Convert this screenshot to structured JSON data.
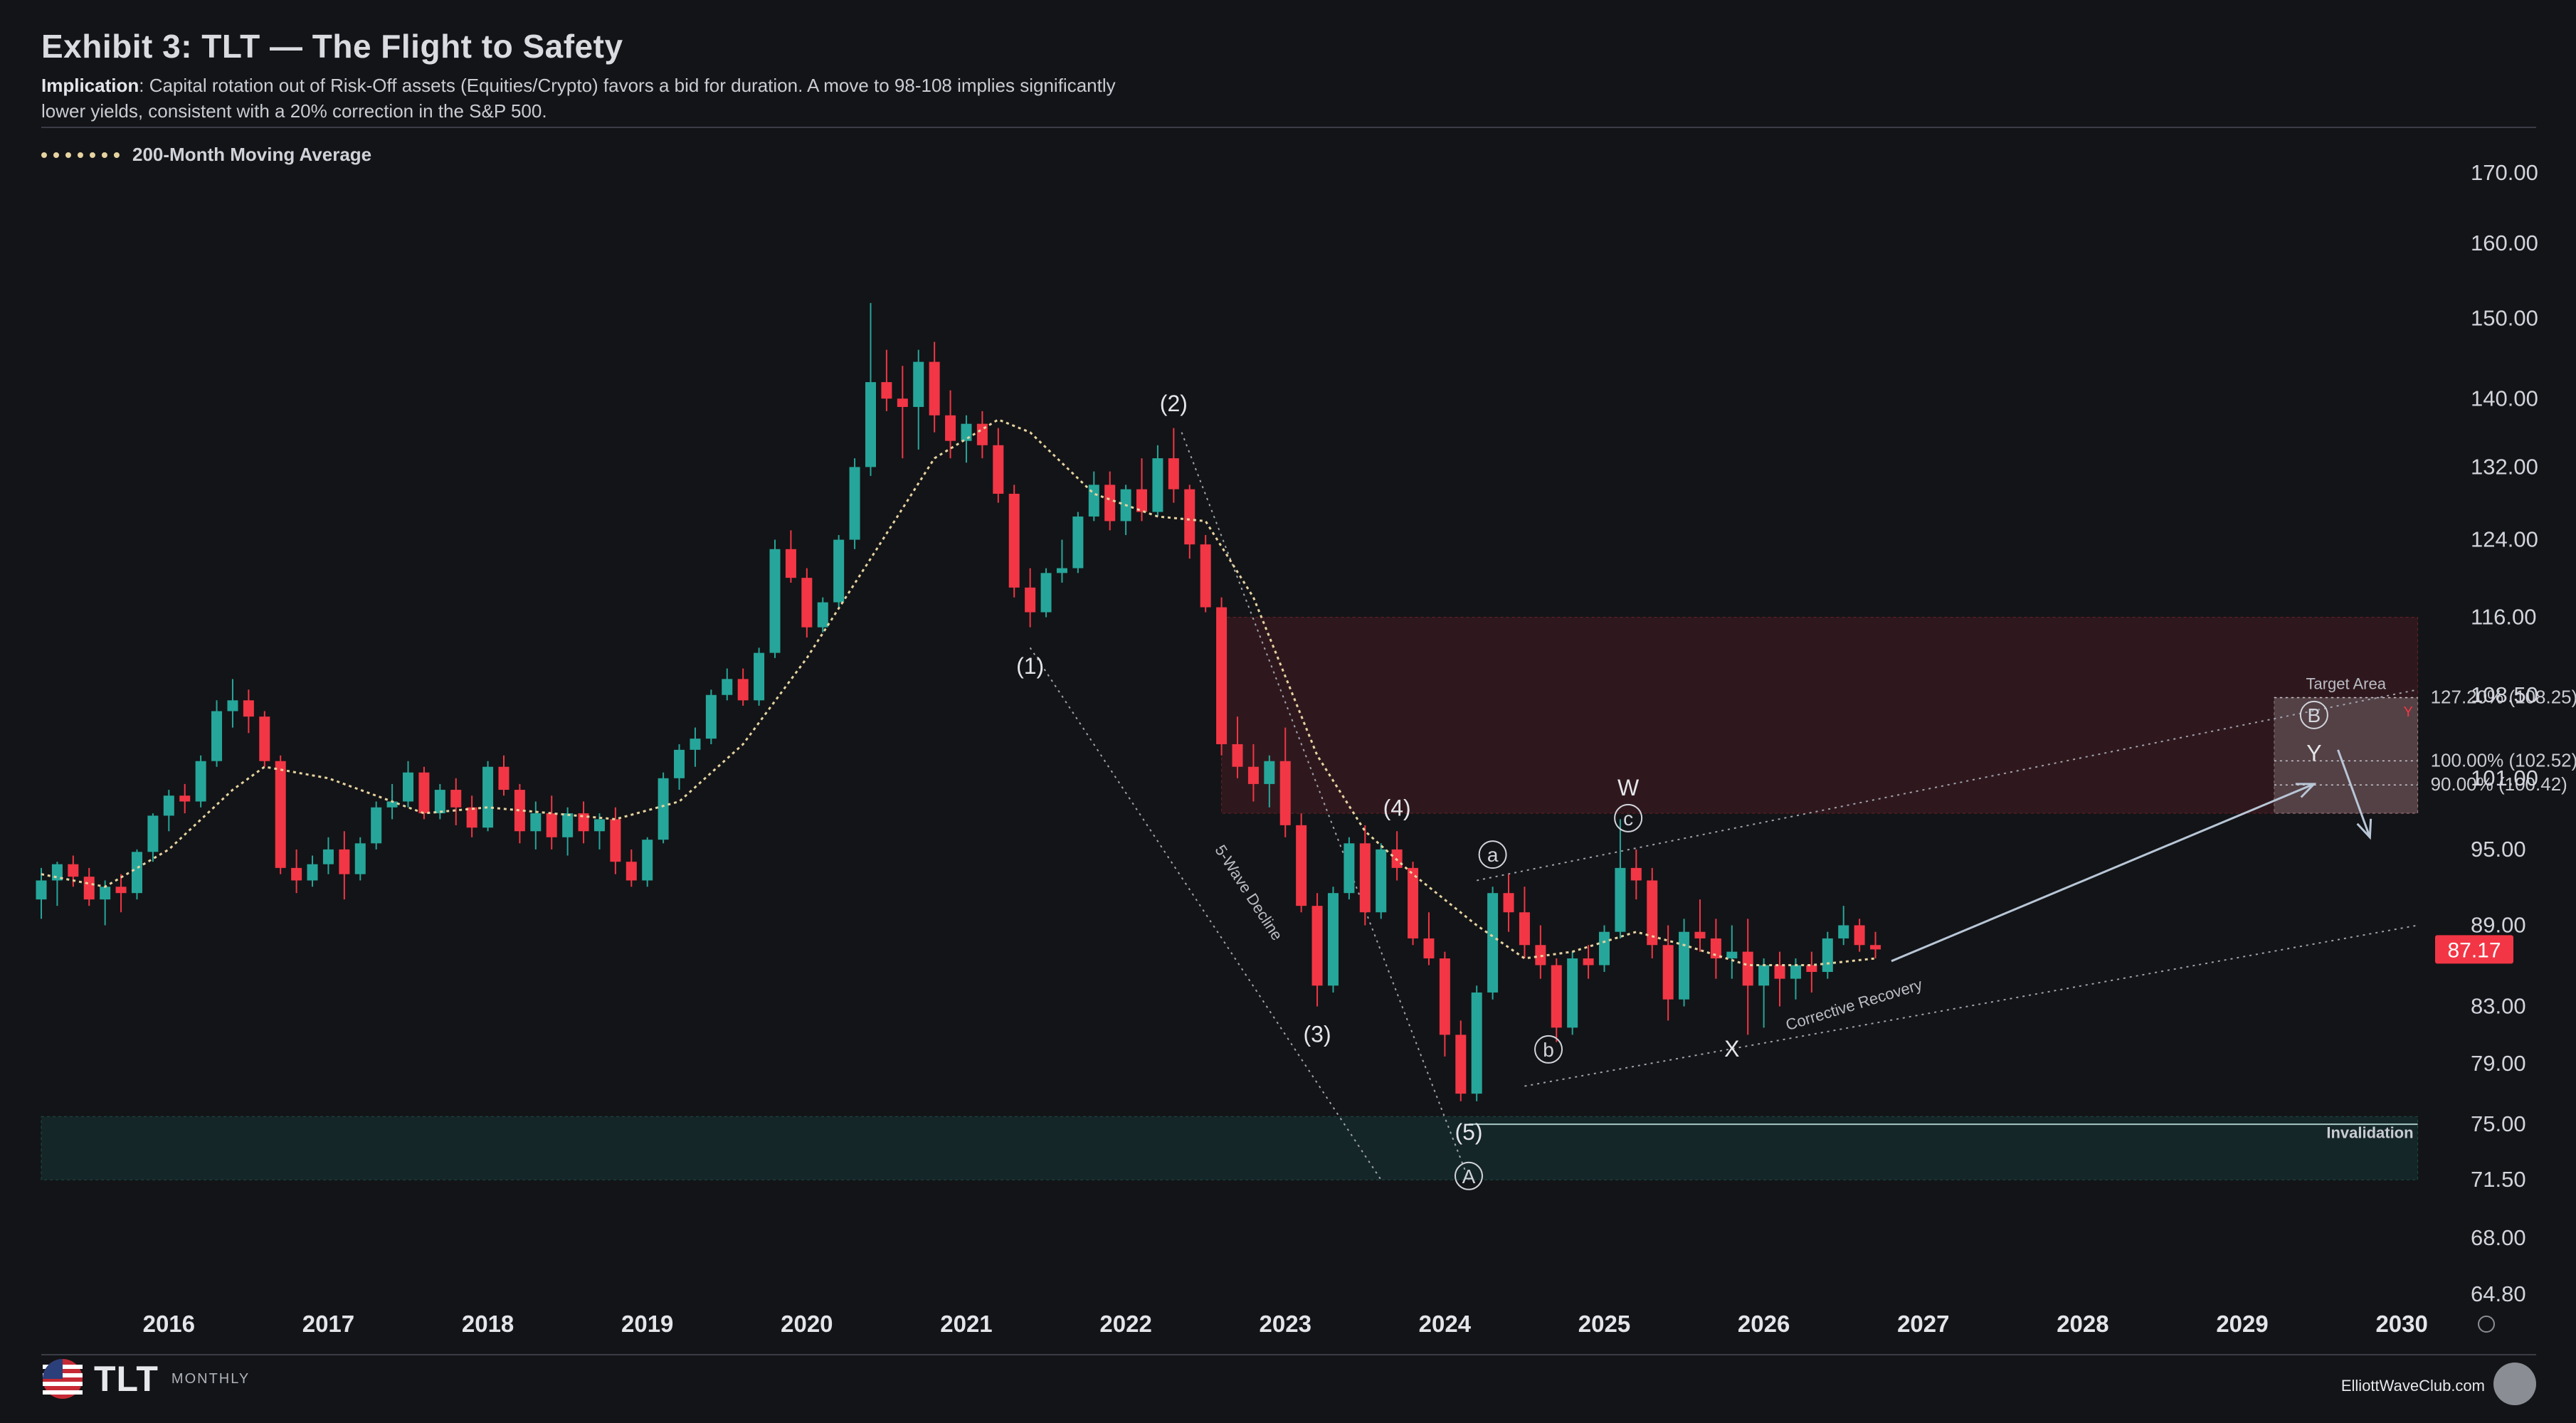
{
  "header": {
    "title": "Exhibit 3: TLT — The Flight to Safety",
    "implication_label": "Implication",
    "implication_text": ": Capital rotation out of Risk-Off assets (Equities/Crypto) favors a bid for duration. A move to 98-108 implies significantly lower yields, consistent with a 20% correction in the S&P 500."
  },
  "legend": {
    "label": "200-Month Moving Average",
    "color": "#e6d3a0"
  },
  "footer": {
    "ticker": "TLT",
    "timeframe": "MONTHLY",
    "credit": "ElliottWaveClub.com"
  },
  "colors": {
    "up": "#26a69a",
    "down": "#f23645",
    "background": "#131417",
    "ma": "#e6d3a0"
  },
  "chart_data": {
    "type": "candlestick",
    "scale": "log",
    "y_ticks": [
      170.0,
      160.0,
      150.0,
      140.0,
      132.0,
      124.0,
      116.0,
      108.5,
      101.0,
      95.0,
      89.0,
      83.0,
      79.0,
      75.0,
      71.5,
      68.0,
      64.8
    ],
    "y_tick_labels": [
      "170.00",
      "160.00",
      "150.00",
      "140.00",
      "132.00",
      "124.00",
      "116.00",
      "108.50",
      "101.00",
      "95.00",
      "89.00",
      "83.00",
      "79.00",
      "75.00",
      "71.50",
      "68.00",
      "64.80"
    ],
    "x_labels": [
      "2016",
      "2017",
      "2018",
      "2019",
      "2020",
      "2021",
      "2022",
      "2023",
      "2024",
      "2025",
      "2026",
      "2027",
      "2028",
      "2029",
      "2030"
    ],
    "ylim": [
      64.8,
      170.0
    ],
    "xlim": [
      2015.6,
      2030.6
    ],
    "last_price": 87.17,
    "last_price_label": "87.17",
    "candles": [
      [
        2015.6,
        91.0,
        93.5,
        89.5,
        92.5
      ],
      [
        2015.7,
        92.5,
        94.0,
        90.5,
        93.8
      ],
      [
        2015.8,
        93.8,
        94.5,
        92.0,
        92.8
      ],
      [
        2015.9,
        92.8,
        93.5,
        90.5,
        91.0
      ],
      [
        2016.0,
        91.0,
        92.5,
        89.0,
        92.0
      ],
      [
        2016.1,
        92.0,
        93.0,
        90.0,
        91.5
      ],
      [
        2016.2,
        91.5,
        95.0,
        91.0,
        94.8
      ],
      [
        2016.3,
        94.8,
        98.0,
        94.0,
        97.8
      ],
      [
        2016.4,
        97.8,
        100.0,
        96.5,
        99.5
      ],
      [
        2016.5,
        99.5,
        100.5,
        98.0,
        99.0
      ],
      [
        2016.6,
        99.0,
        103.0,
        98.5,
        102.5
      ],
      [
        2016.7,
        102.5,
        108.0,
        102.0,
        107.0
      ],
      [
        2016.8,
        107.0,
        110.0,
        105.5,
        108.0
      ],
      [
        2016.9,
        108.0,
        109.0,
        105.0,
        106.5
      ],
      [
        2017.0,
        106.5,
        107.0,
        102.0,
        102.5
      ],
      [
        2017.1,
        102.5,
        103.0,
        93.0,
        93.5
      ],
      [
        2017.2,
        93.5,
        95.0,
        91.5,
        92.5
      ],
      [
        2017.3,
        92.5,
        94.5,
        92.0,
        93.8
      ],
      [
        2017.4,
        93.8,
        96.0,
        93.0,
        95.0
      ],
      [
        2017.5,
        95.0,
        96.5,
        91.0,
        93.0
      ],
      [
        2017.6,
        93.0,
        96.0,
        92.5,
        95.5
      ],
      [
        2017.7,
        95.5,
        99.0,
        95.0,
        98.5
      ],
      [
        2017.8,
        98.5,
        100.5,
        97.5,
        99.0
      ],
      [
        2017.9,
        99.0,
        102.5,
        98.5,
        101.5
      ],
      [
        2018.0,
        101.5,
        102.0,
        97.5,
        98.0
      ],
      [
        2018.1,
        98.0,
        100.5,
        97.5,
        100.0
      ],
      [
        2018.2,
        100.0,
        101.0,
        97.0,
        98.5
      ],
      [
        2018.3,
        98.5,
        99.5,
        96.0,
        96.8
      ],
      [
        2018.4,
        96.8,
        102.5,
        96.5,
        102.0
      ],
      [
        2018.5,
        102.0,
        103.0,
        99.5,
        100.0
      ],
      [
        2018.6,
        100.0,
        100.5,
        95.5,
        96.5
      ],
      [
        2018.7,
        96.5,
        99.0,
        95.0,
        98.0
      ],
      [
        2018.8,
        98.0,
        99.5,
        95.0,
        96.0
      ],
      [
        2018.9,
        96.0,
        98.5,
        94.5,
        98.0
      ],
      [
        2019.0,
        98.0,
        99.0,
        95.5,
        96.5
      ],
      [
        2019.1,
        96.5,
        98.0,
        95.0,
        97.5
      ],
      [
        2019.2,
        97.5,
        98.5,
        93.0,
        94.0
      ],
      [
        2019.3,
        94.0,
        95.0,
        92.0,
        92.5
      ],
      [
        2019.4,
        92.5,
        96.0,
        92.0,
        95.8
      ],
      [
        2019.5,
        95.8,
        101.5,
        95.5,
        101.0
      ],
      [
        2019.6,
        101.0,
        104.0,
        100.0,
        103.5
      ],
      [
        2019.7,
        103.5,
        105.5,
        102.0,
        104.5
      ],
      [
        2019.8,
        104.5,
        109.0,
        104.0,
        108.5
      ],
      [
        2019.9,
        108.5,
        111.0,
        108.0,
        110.0
      ],
      [
        2020.0,
        110.0,
        111.0,
        107.5,
        108.0
      ],
      [
        2020.1,
        108.0,
        113.0,
        107.5,
        112.5
      ],
      [
        2020.2,
        112.5,
        124.0,
        112.0,
        123.0
      ],
      [
        2020.3,
        123.0,
        125.0,
        119.5,
        120.0
      ],
      [
        2020.4,
        120.0,
        121.0,
        114.0,
        115.0
      ],
      [
        2020.5,
        115.0,
        118.0,
        114.5,
        117.5
      ],
      [
        2020.6,
        117.5,
        124.5,
        117.0,
        124.0
      ],
      [
        2020.7,
        124.0,
        133.0,
        123.0,
        132.0
      ],
      [
        2020.8,
        132.0,
        152.0,
        131.0,
        142.0
      ],
      [
        2020.9,
        142.0,
        146.0,
        138.5,
        140.0
      ],
      [
        2021.0,
        140.0,
        144.0,
        133.0,
        139.0
      ],
      [
        2021.1,
        139.0,
        146.0,
        134.0,
        144.5
      ],
      [
        2021.2,
        144.5,
        147.0,
        136.0,
        138.0
      ],
      [
        2021.3,
        138.0,
        141.0,
        133.0,
        135.0
      ],
      [
        2021.4,
        135.0,
        138.0,
        132.5,
        137.0
      ],
      [
        2021.5,
        137.0,
        138.5,
        133.0,
        134.5
      ],
      [
        2021.6,
        134.5,
        136.5,
        128.0,
        129.0
      ],
      [
        2021.7,
        129.0,
        130.0,
        118.0,
        119.0
      ],
      [
        2021.8,
        119.0,
        121.0,
        115.0,
        116.5
      ],
      [
        2021.9,
        116.5,
        121.0,
        116.0,
        120.5
      ],
      [
        2022.0,
        120.5,
        124.0,
        119.5,
        121.0
      ],
      [
        2022.1,
        121.0,
        127.0,
        120.5,
        126.5
      ],
      [
        2022.2,
        126.5,
        131.5,
        126.0,
        130.0
      ],
      [
        2022.3,
        130.0,
        131.5,
        125.0,
        126.0
      ],
      [
        2022.4,
        126.0,
        130.0,
        124.5,
        129.5
      ],
      [
        2022.5,
        129.5,
        133.0,
        126.0,
        127.0
      ],
      [
        2022.6,
        127.0,
        134.5,
        126.5,
        133.0
      ],
      [
        2022.7,
        133.0,
        136.5,
        128.0,
        129.5
      ],
      [
        2022.8,
        129.5,
        130.0,
        122.0,
        123.5
      ],
      [
        2022.9,
        123.5,
        124.5,
        116.5,
        117.0
      ],
      [
        2023.0,
        117.0,
        118.0,
        103.0,
        104.0
      ],
      [
        2023.1,
        104.0,
        106.5,
        101.0,
        102.0
      ],
      [
        2023.2,
        102.0,
        104.0,
        99.0,
        100.5
      ],
      [
        2023.3,
        100.5,
        103.0,
        98.5,
        102.5
      ],
      [
        2023.4,
        102.5,
        105.5,
        96.0,
        97.0
      ],
      [
        2023.5,
        97.0,
        98.0,
        90.0,
        90.5
      ],
      [
        2023.6,
        90.5,
        91.5,
        83.0,
        84.5
      ],
      [
        2023.7,
        84.5,
        92.0,
        84.0,
        91.5
      ],
      [
        2023.8,
        91.5,
        96.0,
        91.0,
        95.5
      ],
      [
        2023.9,
        95.5,
        97.0,
        89.0,
        90.0
      ],
      [
        2024.0,
        90.0,
        95.5,
        89.5,
        95.0
      ],
      [
        2024.1,
        95.0,
        96.5,
        92.5,
        93.5
      ],
      [
        2024.2,
        93.5,
        94.0,
        87.5,
        88.0
      ],
      [
        2024.3,
        88.0,
        90.0,
        86.0,
        86.5
      ],
      [
        2024.4,
        86.5,
        87.0,
        79.5,
        81.0
      ],
      [
        2024.5,
        81.0,
        82.0,
        76.5,
        77.0
      ],
      [
        2024.6,
        77.0,
        84.5,
        76.5,
        84.0
      ],
      [
        2024.7,
        84.0,
        92.0,
        83.5,
        91.5
      ],
      [
        2024.8,
        91.5,
        93.0,
        88.5,
        90.0
      ],
      [
        2024.9,
        90.0,
        92.0,
        86.5,
        87.5
      ],
      [
        2025.0,
        87.5,
        89.0,
        85.0,
        86.0
      ],
      [
        2025.1,
        86.0,
        86.5,
        80.5,
        81.5
      ],
      [
        2025.2,
        81.5,
        87.0,
        81.0,
        86.5
      ],
      [
        2025.3,
        86.5,
        87.5,
        85.0,
        86.0
      ],
      [
        2025.4,
        86.0,
        89.0,
        85.5,
        88.5
      ],
      [
        2025.5,
        88.5,
        97.5,
        88.0,
        93.5
      ],
      [
        2025.6,
        93.5,
        95.0,
        91.0,
        92.5
      ],
      [
        2025.7,
        92.5,
        93.5,
        86.5,
        87.5
      ],
      [
        2025.8,
        87.5,
        89.0,
        82.0,
        83.5
      ],
      [
        2025.9,
        83.5,
        89.5,
        83.0,
        88.5
      ],
      [
        2026.0,
        88.5,
        91.0,
        87.0,
        88.0
      ],
      [
        2026.1,
        88.0,
        89.5,
        85.0,
        86.5
      ],
      [
        2026.2,
        86.5,
        89.0,
        85.0,
        87.0
      ],
      [
        2026.3,
        87.0,
        89.5,
        81.0,
        84.5
      ],
      [
        2026.4,
        84.5,
        86.5,
        81.5,
        86.0
      ],
      [
        2026.5,
        86.0,
        87.0,
        83.0,
        85.0
      ],
      [
        2026.6,
        85.0,
        86.5,
        83.5,
        86.0
      ],
      [
        2026.7,
        86.0,
        87.0,
        84.0,
        85.5
      ],
      [
        2026.8,
        85.5,
        88.5,
        85.0,
        88.0
      ],
      [
        2026.9,
        88.0,
        90.5,
        87.5,
        89.0
      ],
      [
        2027.0,
        89.0,
        89.5,
        87.0,
        87.5
      ],
      [
        2027.1,
        87.5,
        88.5,
        86.5,
        87.17
      ]
    ],
    "moving_average": [
      [
        2015.6,
        93.0
      ],
      [
        2016.0,
        92.0
      ],
      [
        2016.4,
        95.0
      ],
      [
        2016.8,
        100.0
      ],
      [
        2017.0,
        102.0
      ],
      [
        2017.4,
        101.0
      ],
      [
        2017.8,
        99.0
      ],
      [
        2018.0,
        98.0
      ],
      [
        2018.4,
        98.5
      ],
      [
        2018.8,
        98.0
      ],
      [
        2019.2,
        97.5
      ],
      [
        2019.6,
        99.0
      ],
      [
        2020.0,
        104.0
      ],
      [
        2020.4,
        112.0
      ],
      [
        2020.8,
        122.0
      ],
      [
        2021.2,
        133.0
      ],
      [
        2021.6,
        137.5
      ],
      [
        2021.8,
        136.0
      ],
      [
        2022.2,
        129.0
      ],
      [
        2022.6,
        126.5
      ],
      [
        2022.9,
        126.0
      ],
      [
        2023.2,
        118.0
      ],
      [
        2023.6,
        103.0
      ],
      [
        2023.9,
        96.5
      ],
      [
        2024.2,
        93.0
      ],
      [
        2024.6,
        89.0
      ],
      [
        2024.9,
        86.5
      ],
      [
        2025.2,
        87.0
      ],
      [
        2025.6,
        88.5
      ],
      [
        2025.9,
        87.5
      ],
      [
        2026.3,
        86.0
      ],
      [
        2026.7,
        86.0
      ],
      [
        2027.1,
        86.5
      ]
    ],
    "zones": [
      {
        "name": "resistance-zone",
        "x_start": 2023.0,
        "x_end": 2030.5,
        "y_low": 98.0,
        "y_high": 116.0,
        "color": "#f23645"
      },
      {
        "name": "target-area",
        "label": "Target Area",
        "x_start": 2029.6,
        "x_end": 2030.5,
        "y_low": 98.0,
        "y_high": 108.25,
        "color": "#ffffff"
      },
      {
        "name": "invalidation",
        "label": "Invalidation",
        "x_start": 2015.6,
        "x_end": 2030.5,
        "y_low": 71.5,
        "y_high": 75.5,
        "color": "#26a69a"
      }
    ],
    "fib_levels": [
      {
        "label": "127.20% (108.25)",
        "value": 108.25
      },
      {
        "label": "100.00% (102.52)",
        "value": 102.52
      },
      {
        "label": "90.00% (100.42)",
        "value": 100.42
      }
    ],
    "wave_labels": [
      {
        "text": "(1)",
        "x": 2021.8,
        "y": 110.5
      },
      {
        "text": "(2)",
        "x": 2022.7,
        "y": 138.5
      },
      {
        "text": "(3)",
        "x": 2023.6,
        "y": 80.5
      },
      {
        "text": "(4)",
        "x": 2024.1,
        "y": 97.8
      },
      {
        "text": "(5)",
        "x": 2024.55,
        "y": 74.0
      },
      {
        "text": "A",
        "x": 2024.55,
        "y": 71.3,
        "circled": true
      },
      {
        "text": "a",
        "x": 2024.7,
        "y": 94.0,
        "circled": true
      },
      {
        "text": "b",
        "x": 2025.05,
        "y": 79.5,
        "circled": true
      },
      {
        "text": "c",
        "x": 2025.55,
        "y": 97.0,
        "circled": true
      },
      {
        "text": "W",
        "x": 2025.55,
        "y": 99.5
      },
      {
        "text": "X",
        "x": 2026.2,
        "y": 79.5
      },
      {
        "text": "B",
        "x": 2029.85,
        "y": 106.0,
        "circled": true
      },
      {
        "text": "Y",
        "x": 2029.85,
        "y": 102.5
      }
    ],
    "annotations": [
      {
        "text": "5-Wave Decline"
      },
      {
        "text": "Corrective Recovery"
      },
      {
        "text": "Y"
      }
    ]
  }
}
